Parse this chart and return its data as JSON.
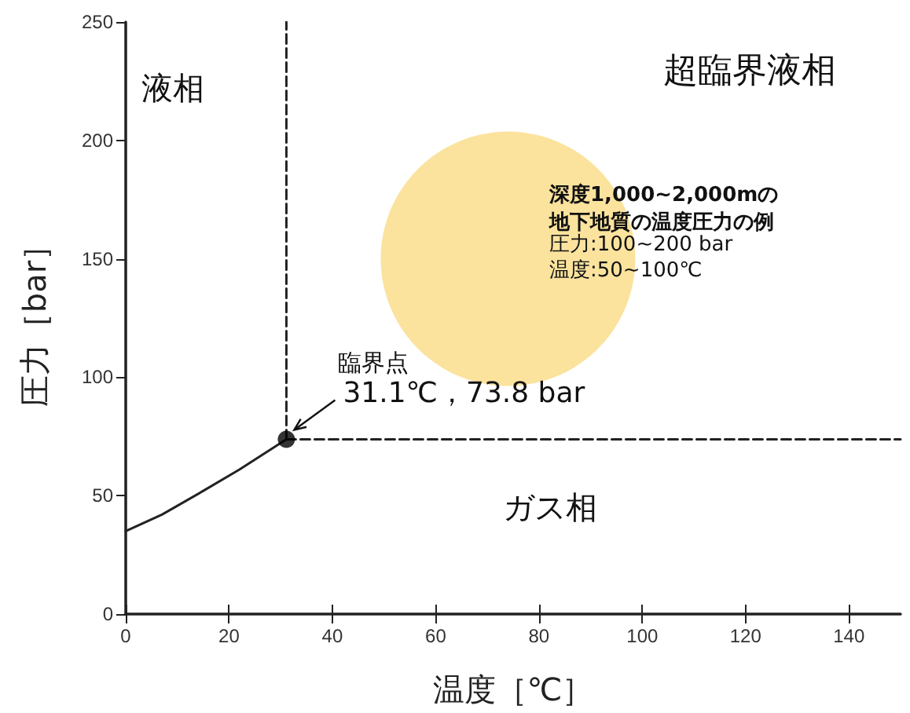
{
  "chart_data": {
    "type": "line",
    "xlabel": "温度［℃］",
    "ylabel": "圧力［bar］",
    "xlim": [
      0,
      150
    ],
    "xticks": [
      0,
      20,
      40,
      60,
      80,
      100,
      120,
      140
    ],
    "ylim": [
      0,
      250
    ],
    "yticks": [
      0,
      50,
      100,
      150,
      200,
      250
    ],
    "grid": false,
    "series": [
      {
        "type": "bubble",
        "color": "#fbe39e",
        "x": [
          74
        ],
        "values": [
          150
        ],
        "sizes": [
          1
        ]
      },
      {
        "color": "#222222",
        "marker": "none",
        "line_style": "solid",
        "x": [
          0,
          7,
          15,
          22,
          31.1
        ],
        "values": [
          35,
          42,
          52,
          61,
          73.8
        ]
      },
      {
        "color": "#222222",
        "marker": "none",
        "line_style": "dashed",
        "x": [
          31.1,
          31.1
        ],
        "values": [
          73.8,
          250
        ]
      },
      {
        "color": "#222222",
        "marker": "none",
        "line_style": "dashed",
        "x": [
          31.1,
          150
        ],
        "values": [
          73.8,
          73.8
        ]
      },
      {
        "type": "scatter",
        "color": "#000000",
        "marker": "circle",
        "x": [
          31.1
        ],
        "values": [
          73.8
        ]
      }
    ],
    "annotations": [
      "液相",
      "超臨界液相",
      "深度1,000~2,000mの地下地質の温度圧力の例",
      "圧力:100~200 bar",
      "温度:50~100℃",
      "臨界点",
      {
        "text": "31.1℃，73.8 bar",
        "x": 31.1,
        "y": 73.8
      },
      "ガス相"
    ]
  }
}
